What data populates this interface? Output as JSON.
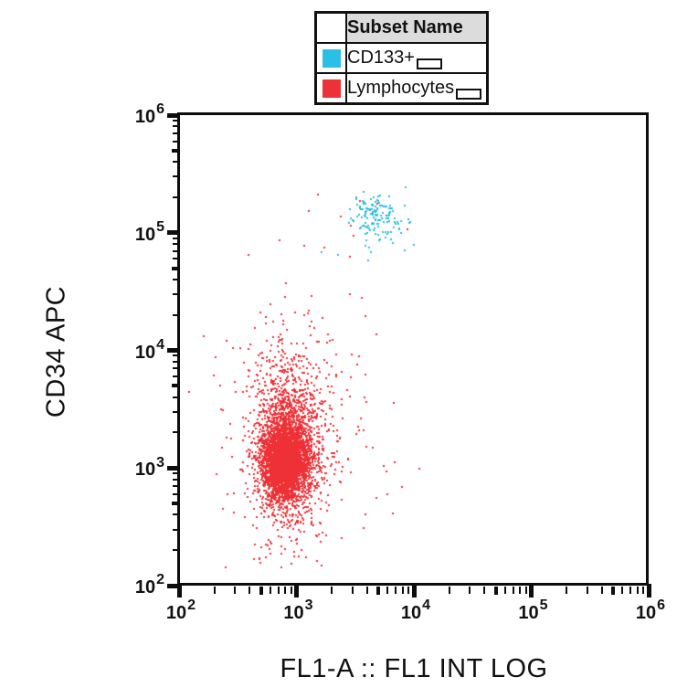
{
  "legend": {
    "header": "Subset Name",
    "rows": [
      {
        "label": "CD133+",
        "color": "#2ac0e6"
      },
      {
        "label": "Lymphocytes",
        "color": "#ee3137"
      }
    ]
  },
  "axes": {
    "x": {
      "label": "FL1-A :: FL1 INT LOG",
      "scale": "log",
      "tick_exponents": [
        2,
        3,
        4,
        5,
        6
      ]
    },
    "y": {
      "label": "CD34 APC",
      "scale": "log",
      "tick_exponents": [
        2,
        3,
        4,
        5,
        6
      ]
    }
  },
  "chart_data": {
    "type": "scatter",
    "title": "",
    "xlabel": "FL1-A :: FL1 INT LOG",
    "ylabel": "CD34 APC",
    "xscale": "log",
    "yscale": "log",
    "xlim": [
      100,
      1000000
    ],
    "ylim": [
      100,
      1000000
    ],
    "grid": false,
    "legend_position": "top-center",
    "marker": "square-2px",
    "seed": 20,
    "series": [
      {
        "name": "Lymphocytes",
        "color": "#ee3137",
        "n_points": 4972,
        "clusters_log10": [
          {
            "n": 3200,
            "cx": 2.9,
            "cy": 3.06,
            "sx": 0.095,
            "sy": 0.16
          },
          {
            "n": 1500,
            "cx": 2.93,
            "cy": 3.22,
            "sx": 0.16,
            "sy": 0.38
          },
          {
            "n": 260,
            "cx": 3.05,
            "cy": 3.3,
            "sx": 0.33,
            "sy": 0.55
          },
          {
            "n": 12,
            "cx": 3.45,
            "cy": 5.05,
            "sx": 0.3,
            "sy": 0.25
          }
        ]
      },
      {
        "name": "CD133+",
        "color": "#2cbcdc",
        "n_points": 150,
        "clusters_log10": [
          {
            "n": 144,
            "cx": 3.68,
            "cy": 5.14,
            "sx": 0.125,
            "sy": 0.105
          },
          {
            "n": 6,
            "cx": 3.62,
            "cy": 4.85,
            "sx": 0.18,
            "sy": 0.08
          }
        ]
      }
    ]
  }
}
